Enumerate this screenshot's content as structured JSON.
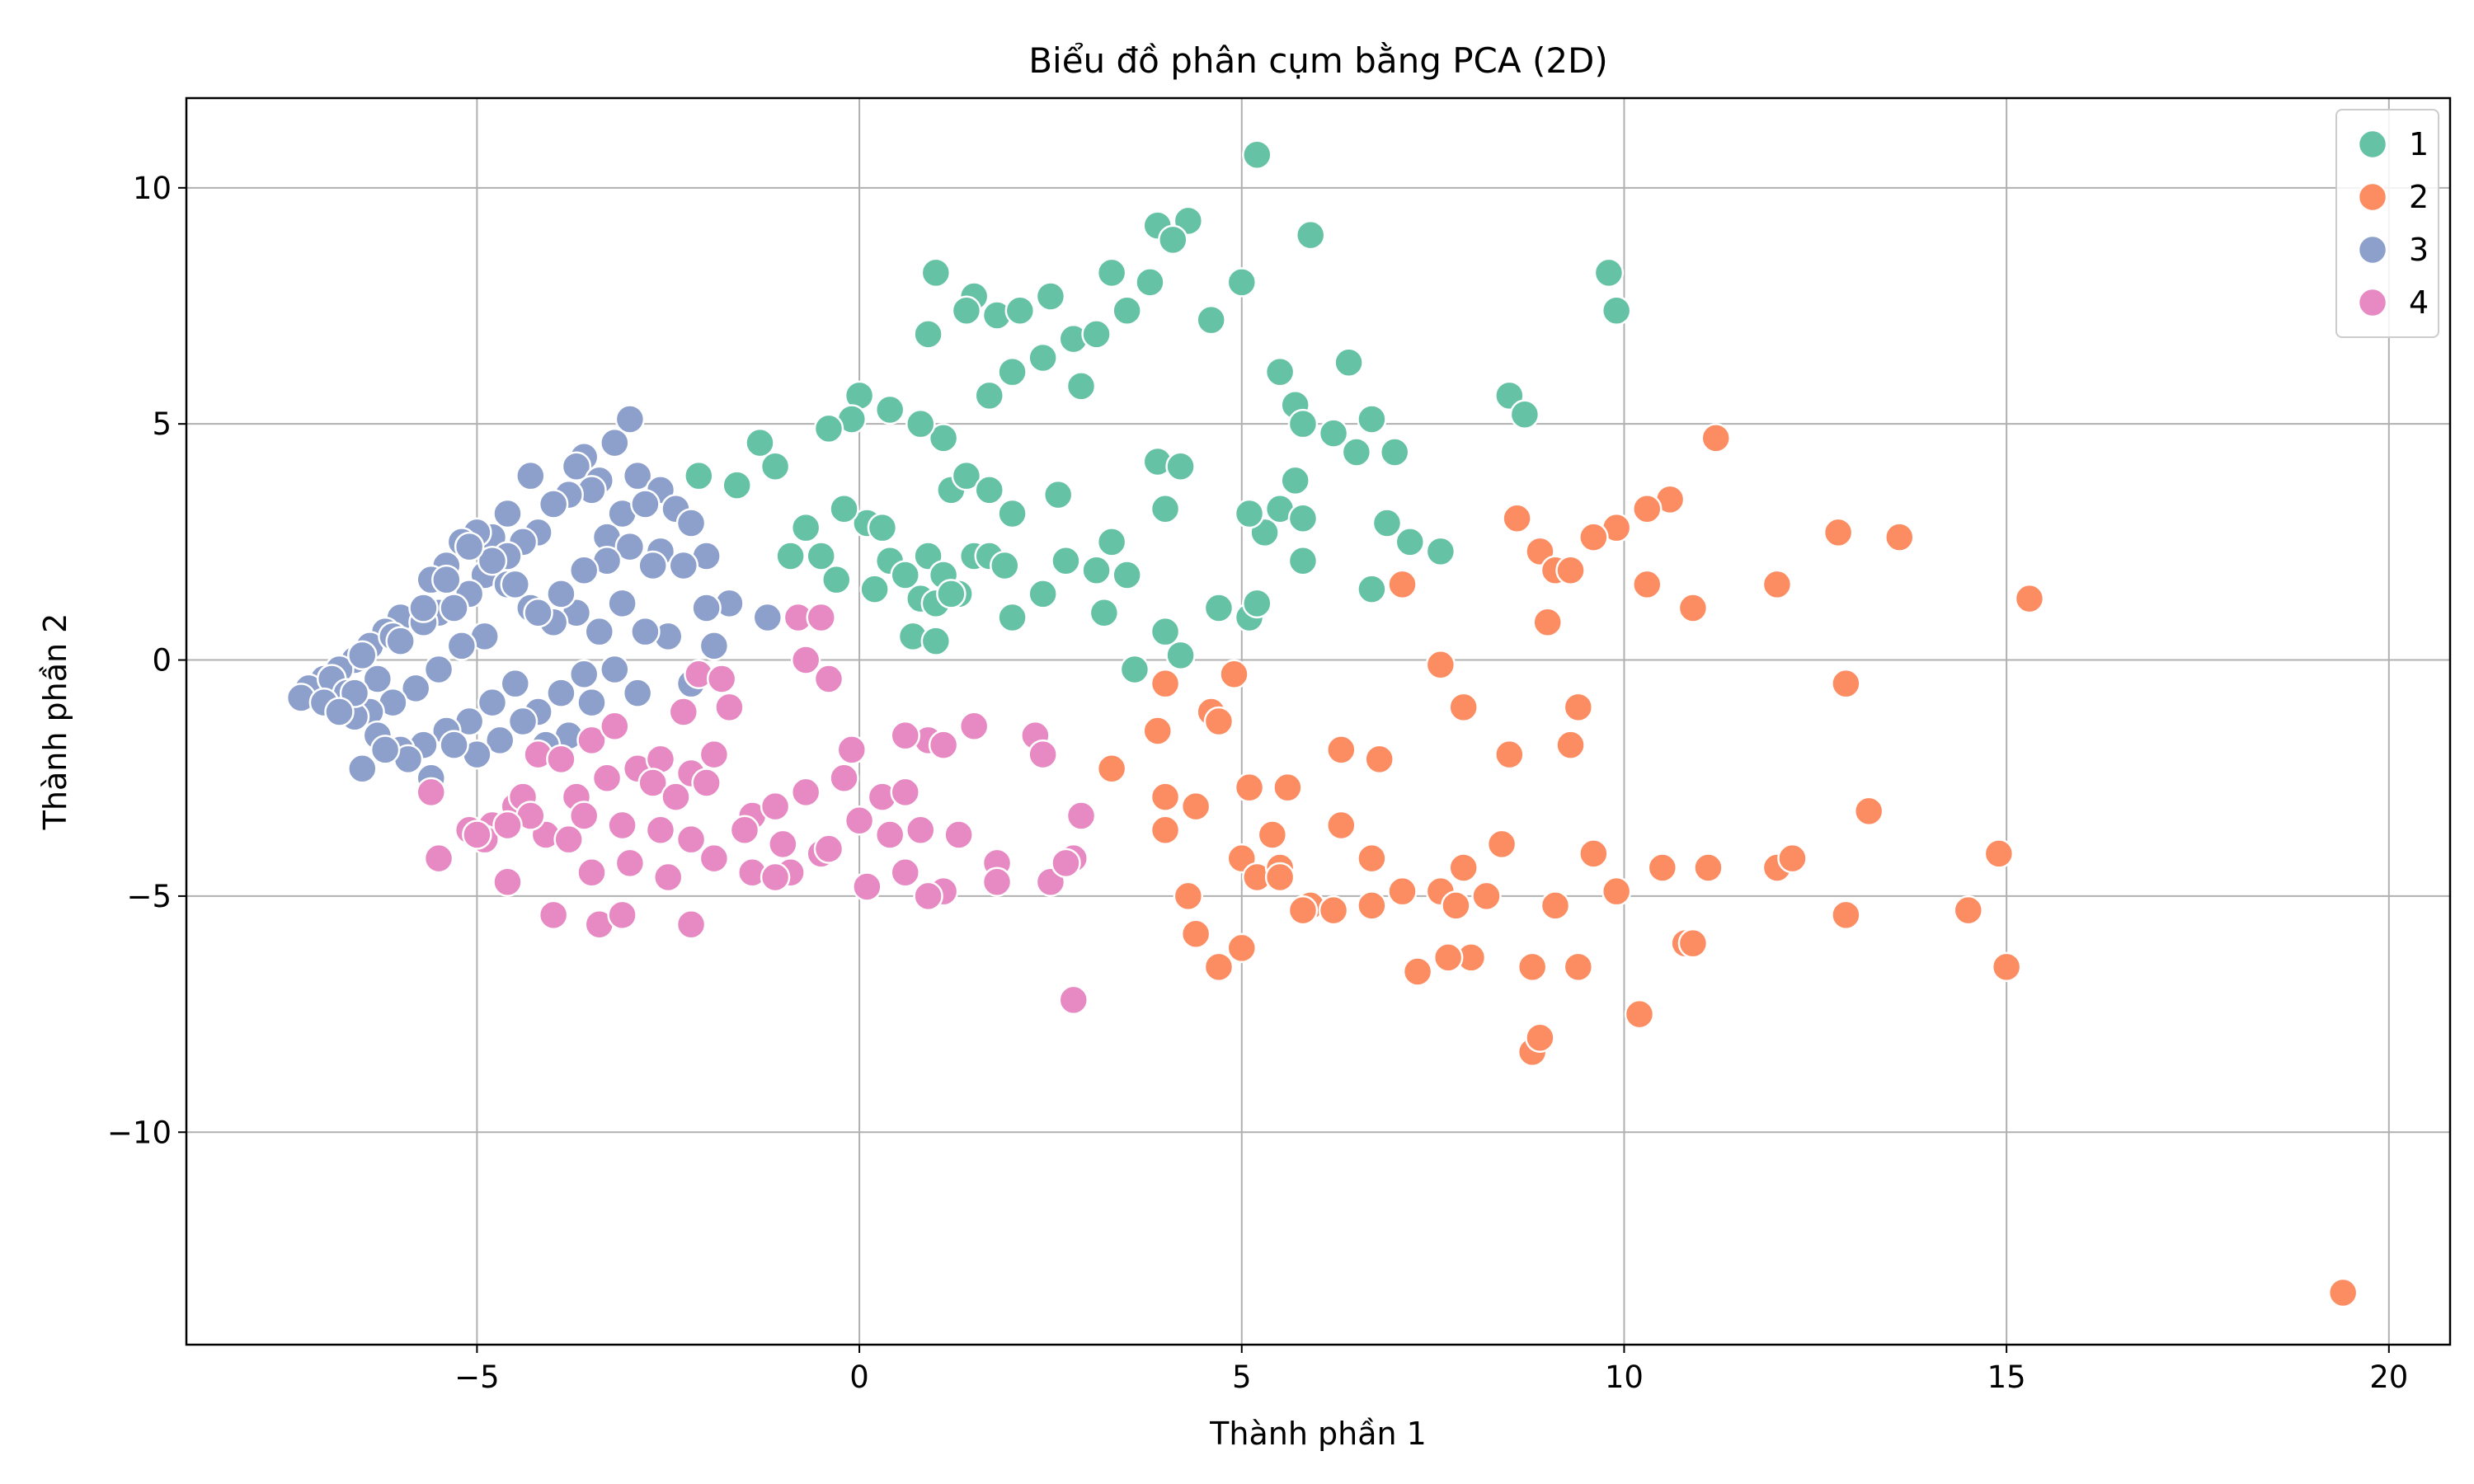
{
  "chart_data": {
    "type": "scatter",
    "title": "Biểu đồ phân cụm bằng PCA (2D)",
    "xlabel": "Thành phần 1",
    "ylabel": "Thành phần 2",
    "xlim": [
      -8.8,
      20.8
    ],
    "ylim": [
      -14.5,
      11.9
    ],
    "xticks": [
      -5,
      0,
      5,
      10,
      15,
      20
    ],
    "yticks": [
      -10,
      -5,
      0,
      5,
      10
    ],
    "xtick_labels": [
      "−5",
      "0",
      "5",
      "10",
      "15",
      "20"
    ],
    "ytick_labels": [
      "−10",
      "−5",
      "0",
      "5",
      "10"
    ],
    "grid": true,
    "legend_position": "top-right",
    "series": [
      {
        "name": "1",
        "color": "#66c2a5",
        "x": [
          5.2,
          3.9,
          4.3,
          4.1,
          5.9,
          9.8,
          9.9,
          1.0,
          1.5,
          1.8,
          2.5,
          3.3,
          3.8,
          4.6,
          5.0,
          1.4,
          2.1,
          3.5,
          0.9,
          2.8,
          3.1,
          2.4,
          2.0,
          2.9,
          5.5,
          6.4,
          8.5,
          8.7,
          1.7,
          1.1,
          0.4,
          0.0,
          -0.1,
          -0.4,
          -1.3,
          -1.1,
          -2.1,
          -1.6,
          0.8,
          5.7,
          5.8,
          6.2,
          6.7,
          6.5,
          7.0,
          3.9,
          4.2,
          4.0,
          1.2,
          1.4,
          1.7,
          2.0,
          5.5,
          5.7,
          5.3,
          5.1,
          5.8,
          5.8,
          6.9,
          7.2,
          7.6,
          0.1,
          0.3,
          -0.2,
          -0.7,
          0.4,
          0.9,
          2.6,
          3.3,
          1.1,
          1.3,
          1.5,
          1.7,
          1.9,
          2.7,
          3.1,
          3.5,
          4.0,
          4.7,
          5.1,
          5.2,
          6.7,
          3.6,
          4.2,
          0.7,
          1.0,
          0.8,
          1.0,
          1.2,
          0.6,
          0.2,
          -0.3,
          -0.5,
          -0.9,
          2.0,
          2.4,
          3.2
        ],
        "y": [
          10.7,
          9.2,
          9.3,
          8.9,
          9.0,
          8.2,
          7.4,
          8.2,
          7.7,
          7.3,
          7.7,
          8.2,
          8.0,
          7.2,
          8.0,
          7.4,
          7.4,
          7.4,
          6.9,
          6.8,
          6.9,
          6.4,
          6.1,
          5.8,
          6.1,
          6.3,
          5.6,
          5.2,
          5.6,
          4.7,
          5.3,
          5.6,
          5.1,
          4.9,
          4.6,
          4.1,
          3.9,
          3.7,
          5.0,
          5.4,
          5.0,
          4.8,
          5.1,
          4.4,
          4.4,
          4.2,
          4.1,
          3.2,
          3.6,
          3.9,
          3.6,
          3.1,
          3.2,
          3.8,
          2.7,
          3.1,
          3.0,
          2.1,
          2.9,
          2.5,
          2.3,
          2.9,
          2.8,
          3.2,
          2.8,
          2.1,
          2.2,
          3.5,
          2.5,
          1.8,
          1.4,
          2.2,
          2.2,
          2.0,
          2.1,
          1.9,
          1.8,
          0.6,
          1.1,
          0.9,
          1.2,
          1.5,
          -0.2,
          0.1,
          0.5,
          0.4,
          1.3,
          1.2,
          1.4,
          1.8,
          1.5,
          1.7,
          2.2,
          2.2,
          0.9,
          1.4,
          1.0
        ]
      },
      {
        "name": "2",
        "color": "#fc8d62",
        "x": [
          11.2,
          10.6,
          10.3,
          9.9,
          9.6,
          8.6,
          8.9,
          9.1,
          9.3,
          9.0,
          7.1,
          10.3,
          10.9,
          12.0,
          12.8,
          13.6,
          15.3,
          7.6,
          7.9,
          9.4,
          9.3,
          8.5,
          12.9,
          6.8,
          6.3,
          4.0,
          3.9,
          4.6,
          4.7,
          4.9,
          3.3,
          4.0,
          4.4,
          5.1,
          5.6,
          6.3,
          4.0,
          5.0,
          5.4,
          6.7,
          5.2,
          5.5,
          5.9,
          5.8,
          6.2,
          4.3,
          4.4,
          5.0,
          4.7,
          5.5,
          7.1,
          7.6,
          7.9,
          8.2,
          8.0,
          8.4,
          7.7,
          7.8,
          7.3,
          9.1,
          9.6,
          9.9,
          10.5,
          11.1,
          12.0,
          12.2,
          12.9,
          13.2,
          14.5,
          14.9,
          15.0,
          8.8,
          8.9,
          9.4,
          10.2,
          10.8,
          10.9,
          8.8,
          8.9,
          19.4,
          6.7
        ],
        "y": [
          4.7,
          3.4,
          3.2,
          2.8,
          2.6,
          3.0,
          2.3,
          1.9,
          1.9,
          0.8,
          1.6,
          1.6,
          1.1,
          1.6,
          2.7,
          2.6,
          1.3,
          -0.1,
          -1.0,
          -1.0,
          -1.8,
          -2.0,
          -0.5,
          -2.1,
          -1.9,
          -0.5,
          -1.5,
          -1.1,
          -1.3,
          -0.3,
          -2.3,
          -2.9,
          -3.1,
          -2.7,
          -2.7,
          -3.5,
          -3.6,
          -4.2,
          -3.7,
          -4.2,
          -4.6,
          -4.4,
          -5.2,
          -5.3,
          -5.3,
          -5.0,
          -5.8,
          -6.1,
          -6.5,
          -4.6,
          -4.9,
          -4.9,
          -4.4,
          -5.0,
          -6.3,
          -3.9,
          -6.3,
          -5.2,
          -6.6,
          -5.2,
          -4.1,
          -4.9,
          -4.4,
          -4.4,
          -4.4,
          -4.2,
          -5.4,
          -3.2,
          -5.3,
          -4.1,
          -6.5,
          -6.5,
          -8.0,
          -6.5,
          -7.5,
          -6.0,
          -6.0,
          -8.3,
          -8.0,
          -13.4,
          -5.2
        ]
      },
      {
        "name": "3",
        "color": "#8da0cb",
        "x": [
          -3.0,
          -3.2,
          -3.6,
          -3.7,
          -3.4,
          -2.9,
          -2.6,
          -2.4,
          -2.2,
          -2.0,
          -1.7,
          -1.2,
          -4.3,
          -4.6,
          -4.8,
          -5.0,
          -5.2,
          -5.4,
          -5.6,
          -5.5,
          -6.0,
          -6.2,
          -6.4,
          -6.6,
          -6.8,
          -7.0,
          -7.2,
          -7.3,
          -3.5,
          -3.8,
          -4.0,
          -4.2,
          -4.4,
          -4.6,
          -4.9,
          -5.1,
          -5.3,
          -5.7,
          -6.1,
          -6.5,
          -6.9,
          -3.3,
          -3.1,
          -2.8,
          -2.6,
          -2.3,
          -2.0,
          -1.9,
          -2.2,
          -2.5,
          -2.8,
          -3.1,
          -3.4,
          -3.7,
          -4.0,
          -4.3,
          -4.6,
          -4.9,
          -5.2,
          -5.5,
          -5.8,
          -6.1,
          -6.4,
          -6.7,
          -7.0,
          -3.6,
          -3.9,
          -4.2,
          -4.5,
          -4.8,
          -5.1,
          -5.4,
          -5.7,
          -6.0,
          -6.3,
          -6.6,
          -2.9,
          -2.7,
          -3.0,
          -3.3,
          -3.6,
          -3.9,
          -4.2,
          -4.5,
          -4.8,
          -5.1,
          -5.4,
          -5.7,
          -6.0,
          -6.3,
          -3.2,
          -3.5,
          -3.8,
          -4.1,
          -4.4,
          -4.7,
          -5.0,
          -5.3,
          -5.6,
          -5.9,
          -6.2,
          -6.5,
          -6.6,
          -6.8
        ],
        "y": [
          5.1,
          4.6,
          4.3,
          4.1,
          3.8,
          3.9,
          3.6,
          3.2,
          2.9,
          2.2,
          1.2,
          0.9,
          3.9,
          3.1,
          2.6,
          2.7,
          2.5,
          2.0,
          1.7,
          1.0,
          0.9,
          0.6,
          0.3,
          0.0,
          -0.2,
          -0.4,
          -0.6,
          -0.8,
          3.6,
          3.5,
          3.3,
          2.7,
          2.5,
          2.2,
          1.8,
          1.4,
          1.1,
          0.8,
          0.5,
          0.1,
          -0.4,
          2.6,
          3.1,
          3.3,
          2.3,
          2.0,
          1.1,
          0.3,
          -0.5,
          0.5,
          0.6,
          1.2,
          0.6,
          1.0,
          0.8,
          1.1,
          1.6,
          0.5,
          0.3,
          -0.2,
          -0.6,
          -0.9,
          -1.1,
          -0.7,
          -0.9,
          -0.3,
          -0.7,
          -1.1,
          -0.5,
          -0.9,
          -1.3,
          -1.5,
          -1.8,
          -1.9,
          -1.6,
          -1.2,
          -0.7,
          2.0,
          2.4,
          2.1,
          1.9,
          1.4,
          1.0,
          1.6,
          2.1,
          2.4,
          1.7,
          1.1,
          0.4,
          -0.4,
          -0.2,
          -0.9,
          -1.6,
          -1.8,
          -1.3,
          -1.7,
          -2.0,
          -1.8,
          -2.5,
          -2.1,
          -1.9,
          -2.3,
          -0.7,
          -1.1
        ]
      },
      {
        "name": "4",
        "color": "#e78ac3",
        "x": [
          -0.8,
          -0.5,
          -0.7,
          -0.4,
          -2.1,
          -1.8,
          -2.3,
          -1.7,
          -3.5,
          -3.2,
          -4.2,
          -3.9,
          -2.9,
          -2.6,
          -2.2,
          -1.9,
          -4.5,
          -4.8,
          -3.7,
          -3.3,
          -2.7,
          -2.4,
          -2.0,
          -1.4,
          -1.1,
          -0.7,
          -0.2,
          0.3,
          0.6,
          0.9,
          1.5,
          2.3,
          2.4,
          2.9,
          -5.6,
          -5.1,
          -4.4,
          -4.1,
          -3.6,
          -3.1,
          -2.6,
          -2.2,
          -1.5,
          -1.0,
          -0.5,
          0.0,
          0.4,
          0.8,
          1.3,
          1.8,
          2.5,
          2.8,
          -4.6,
          -4.0,
          -3.5,
          -3.0,
          -2.5,
          -1.9,
          -1.4,
          -0.9,
          -0.4,
          0.1,
          0.6,
          1.1,
          1.8,
          2.7,
          -5.5,
          -4.9,
          -4.3,
          -3.8,
          -3.4,
          -0.1,
          2.8,
          0.9,
          1.1,
          0.6,
          -2.2,
          -1.1,
          -3.1,
          -4.6,
          -5.0
        ],
        "y": [
          0.9,
          0.9,
          0.0,
          -0.4,
          -0.3,
          -0.4,
          -1.1,
          -1.0,
          -1.7,
          -1.4,
          -2.0,
          -2.1,
          -2.3,
          -2.1,
          -2.4,
          -2.0,
          -3.1,
          -3.5,
          -2.9,
          -2.5,
          -2.6,
          -2.9,
          -2.6,
          -3.3,
          -3.1,
          -2.8,
          -2.5,
          -2.9,
          -2.8,
          -1.7,
          -1.4,
          -1.6,
          -2.0,
          -3.3,
          -2.8,
          -3.6,
          -2.9,
          -3.7,
          -3.3,
          -3.5,
          -3.6,
          -3.8,
          -3.6,
          -3.9,
          -4.1,
          -3.4,
          -3.7,
          -3.6,
          -3.7,
          -4.3,
          -4.7,
          -4.2,
          -4.7,
          -5.4,
          -4.5,
          -4.3,
          -4.6,
          -4.2,
          -4.5,
          -4.5,
          -4.0,
          -4.8,
          -4.5,
          -4.9,
          -4.7,
          -4.3,
          -4.2,
          -3.8,
          -3.3,
          -3.8,
          -5.6,
          -1.9,
          -7.2,
          -5.0,
          -1.8,
          -1.6,
          -5.6,
          -4.6,
          -5.4,
          -3.5,
          -3.7
        ]
      }
    ]
  }
}
